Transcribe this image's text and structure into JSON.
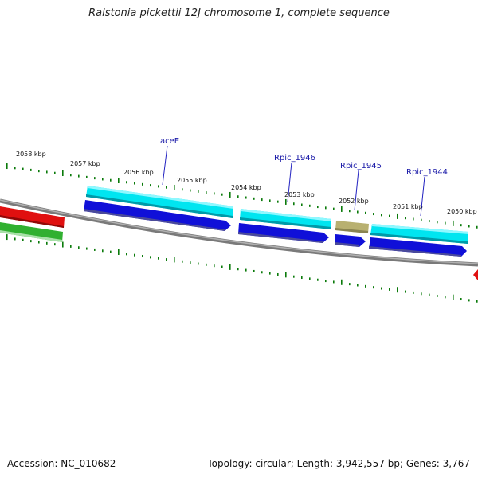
{
  "title": "Ralstonia pickettii 12J chromosome 1, complete sequence",
  "footer": {
    "accession": "Accession: NC_010682",
    "topology": "Topology: circular; Length: 3,942,557 bp; Genes: 3,767"
  },
  "kbp_labels": [
    "2058 kbp",
    "2057 kbp",
    "2056 kbp",
    "2055 kbp",
    "2054 kbp",
    "2053 kbp",
    "2052 kbp",
    "2051 kbp",
    "2050 kbp"
  ],
  "genes": [
    {
      "name": "aceE"
    },
    {
      "name": "Rpic_1946"
    },
    {
      "name": "Rpic_1945"
    },
    {
      "name": "Rpic_1944"
    }
  ],
  "colors": {
    "backbone": "#7a7a7a",
    "cyan": "#00e5f0",
    "blue": "#1010d8",
    "khaki": "#b8b070",
    "red": "#e01010",
    "green": "#30b030",
    "tick": "#0a7a0a"
  }
}
